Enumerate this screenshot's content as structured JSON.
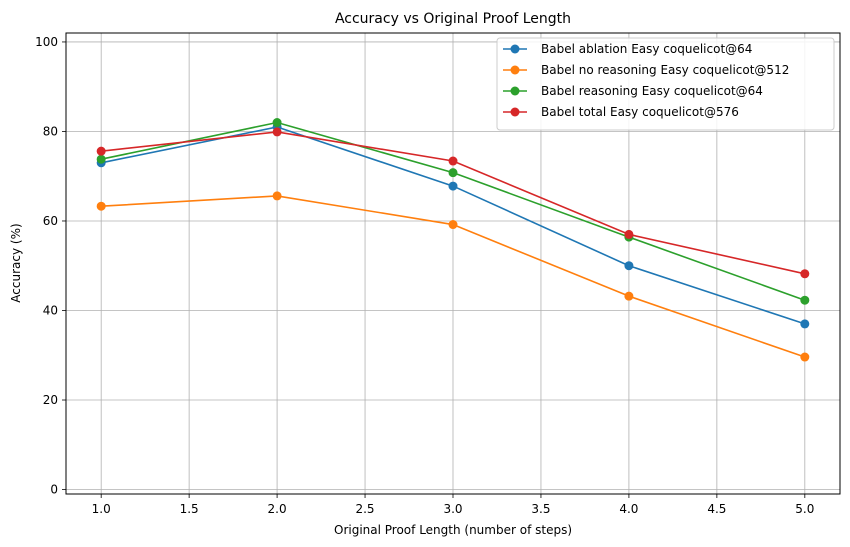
{
  "chart_data": {
    "type": "line",
    "title": "Accuracy vs Original Proof Length",
    "xlabel": "Original Proof Length (number of steps)",
    "ylabel": "Accuracy (%)",
    "x": [
      1,
      2,
      3,
      4,
      5
    ],
    "xlim": [
      0.8,
      5.2
    ],
    "ylim": [
      -1,
      102
    ],
    "xticks": [
      1.0,
      1.5,
      2.0,
      2.5,
      3.0,
      3.5,
      4.0,
      4.5,
      5.0
    ],
    "xtick_labels": [
      "1.0",
      "1.5",
      "2.0",
      "2.5",
      "3.0",
      "3.5",
      "4.0",
      "4.5",
      "5.0"
    ],
    "yticks": [
      0,
      20,
      40,
      60,
      80,
      100
    ],
    "ytick_labels": [
      "0",
      "20",
      "40",
      "60",
      "80",
      "100"
    ],
    "grid": true,
    "legend_position": "top-right",
    "series": [
      {
        "name": "Babel ablation Easy coquelicot@64",
        "color": "#1f77b4",
        "values": [
          73.0,
          81.0,
          67.8,
          50.0,
          37.0
        ]
      },
      {
        "name": "Babel no reasoning Easy coquelicot@512",
        "color": "#ff7f0e",
        "values": [
          63.3,
          65.6,
          59.2,
          43.2,
          29.6
        ]
      },
      {
        "name": "Babel reasoning Easy coquelicot@64",
        "color": "#2ca02c",
        "values": [
          73.8,
          82.0,
          70.8,
          56.4,
          42.3
        ]
      },
      {
        "name": "Babel total Easy coquelicot@576",
        "color": "#d62728",
        "values": [
          75.6,
          79.9,
          73.4,
          57.0,
          48.2
        ]
      }
    ]
  }
}
